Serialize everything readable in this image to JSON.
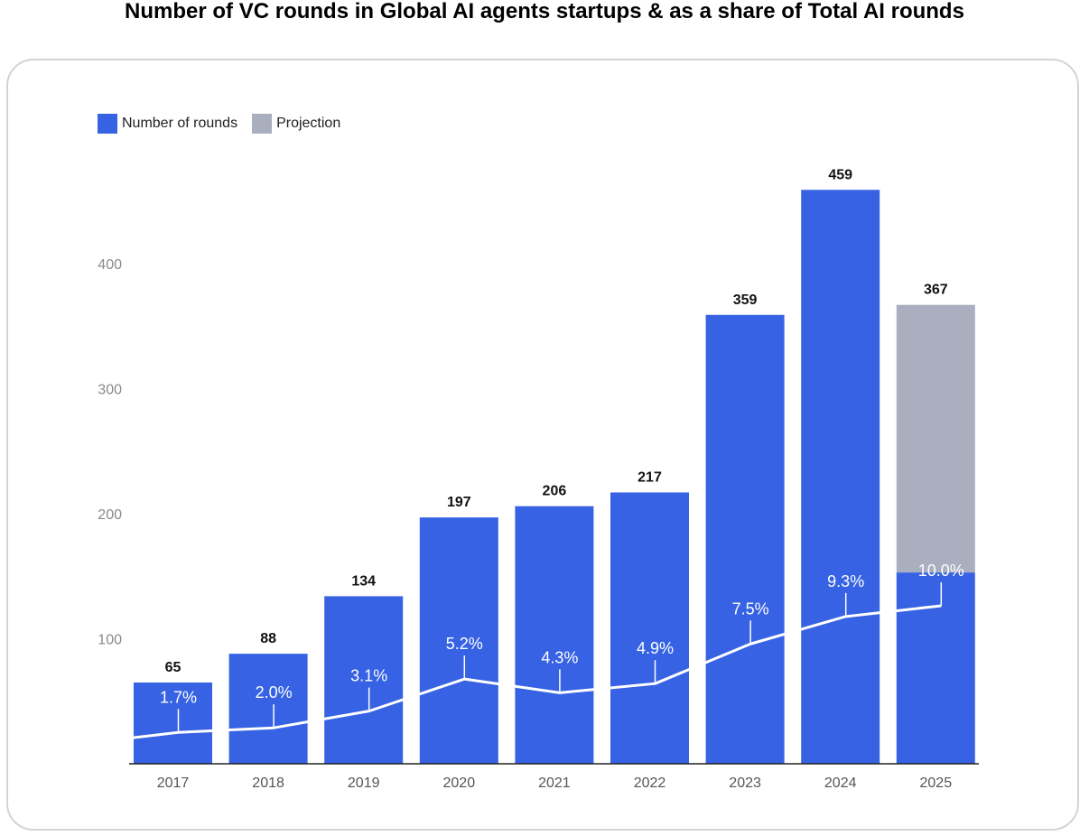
{
  "chart_data": {
    "type": "bar",
    "title": "Number of VC rounds in Global AI agents startups & as a share of Total AI rounds",
    "categories": [
      "2017",
      "2018",
      "2019",
      "2020",
      "2021",
      "2022",
      "2023",
      "2024",
      "2025"
    ],
    "series": [
      {
        "name": "Number of rounds",
        "color": "#3662e3",
        "values": [
          65,
          88,
          134,
          197,
          206,
          217,
          359,
          459,
          153
        ]
      },
      {
        "name": "Projection",
        "color": "#a9afbf",
        "values": [
          0,
          0,
          0,
          0,
          0,
          0,
          0,
          0,
          214
        ]
      }
    ],
    "total_labels": [
      "65",
      "88",
      "134",
      "197",
      "206",
      "217",
      "359",
      "459",
      "367"
    ],
    "line_series": {
      "name": "Share of Total AI rounds",
      "color": "#ffffff",
      "values": [
        1.7,
        2.0,
        3.1,
        5.2,
        4.3,
        4.9,
        7.5,
        9.3,
        10.0
      ],
      "labels": [
        "1.7%",
        "2.0%",
        "3.1%",
        "5.2%",
        "4.3%",
        "4.9%",
        "7.5%",
        "9.3%",
        "10.0%"
      ],
      "ylim": [
        0,
        16.5
      ]
    },
    "y_ticks": [
      100,
      200,
      300,
      400
    ],
    "y_tick_labels": [
      "100",
      "200",
      "300",
      "400"
    ],
    "ylim": [
      0,
      475
    ],
    "legend": [
      {
        "label": "Number of rounds",
        "color": "#3662e3"
      },
      {
        "label": "Projection",
        "color": "#a9afbf"
      }
    ],
    "legend_position": "top-left"
  }
}
